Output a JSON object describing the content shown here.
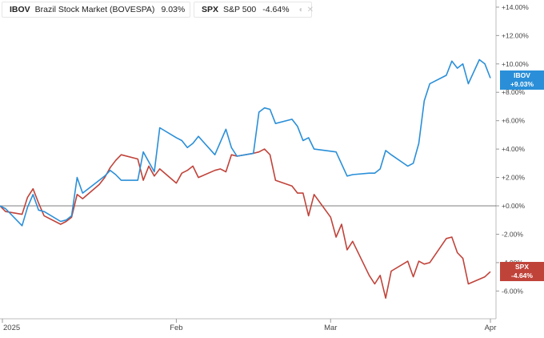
{
  "legend": [
    {
      "symbol": "IBOV",
      "name": "Brazil Stock Market (BOVESPA)",
      "change": "9.03%",
      "color": "#2a8fd8"
    },
    {
      "symbol": "SPX",
      "name": "S&P 500",
      "change": "-4.64%",
      "color": "#c0433a"
    }
  ],
  "badges": {
    "ibov": {
      "symbol": "IBOV",
      "value": "+9.03%"
    },
    "spx": {
      "symbol": "SPX",
      "value": "-4.64%"
    }
  },
  "chart_data": {
    "type": "line",
    "ylim": [
      -7.2,
      14.2
    ],
    "y_ticks": [
      "+14.00%",
      "+12.00%",
      "+10.00%",
      "+8.00%",
      "+6.00%",
      "+4.00%",
      "+2.00%",
      "+0.00%",
      "-2.00%",
      "-4.00%",
      "-6.00%"
    ],
    "y_tick_values": [
      14,
      12,
      10,
      8,
      6,
      4,
      2,
      0,
      -2,
      -4,
      -6
    ],
    "x_ticks": [
      {
        "label": "2025",
        "date": "2025-01-02"
      },
      {
        "label": "Feb",
        "date": "2025-02-03"
      },
      {
        "label": "Mar",
        "date": "2025-03-03"
      },
      {
        "label": "Apr",
        "date": "2025-04-01"
      }
    ],
    "x_range": [
      "2025-01-02",
      "2025-04-01"
    ],
    "zero_line": 0,
    "series": [
      {
        "name": "IBOV",
        "color": "#2a8fd8",
        "points": [
          [
            "2025-01-02",
            0.0
          ],
          [
            "2025-01-03",
            -0.2
          ],
          [
            "2025-01-06",
            -1.4
          ],
          [
            "2025-01-07",
            -0.1
          ],
          [
            "2025-01-08",
            0.8
          ],
          [
            "2025-01-09",
            -0.3
          ],
          [
            "2025-01-10",
            -0.4
          ],
          [
            "2025-01-13",
            -1.1
          ],
          [
            "2025-01-14",
            -1.0
          ],
          [
            "2025-01-15",
            -0.7
          ],
          [
            "2025-01-16",
            2.0
          ],
          [
            "2025-01-17",
            0.9
          ],
          [
            "2025-01-20",
            1.8
          ],
          [
            "2025-01-21",
            2.1
          ],
          [
            "2025-01-22",
            2.5
          ],
          [
            "2025-01-23",
            2.2
          ],
          [
            "2025-01-24",
            1.8
          ],
          [
            "2025-01-27",
            1.8
          ],
          [
            "2025-01-28",
            3.8
          ],
          [
            "2025-01-29",
            3.1
          ],
          [
            "2025-01-30",
            2.4
          ],
          [
            "2025-01-31",
            5.5
          ],
          [
            "2025-02-03",
            4.8
          ],
          [
            "2025-02-04",
            4.6
          ],
          [
            "2025-02-05",
            4.1
          ],
          [
            "2025-02-06",
            4.4
          ],
          [
            "2025-02-07",
            4.9
          ],
          [
            "2025-02-10",
            3.6
          ],
          [
            "2025-02-11",
            4.5
          ],
          [
            "2025-02-12",
            5.4
          ],
          [
            "2025-02-13",
            4.1
          ],
          [
            "2025-02-14",
            3.5
          ],
          [
            "2025-02-17",
            3.7
          ],
          [
            "2025-02-18",
            6.6
          ],
          [
            "2025-02-19",
            6.9
          ],
          [
            "2025-02-20",
            6.8
          ],
          [
            "2025-02-21",
            5.8
          ],
          [
            "2025-02-24",
            6.1
          ],
          [
            "2025-02-25",
            5.6
          ],
          [
            "2025-02-26",
            4.6
          ],
          [
            "2025-02-27",
            4.8
          ],
          [
            "2025-02-28",
            4.0
          ],
          [
            "2025-03-04",
            3.8
          ],
          [
            "2025-03-06",
            2.1
          ],
          [
            "2025-03-07",
            2.2
          ],
          [
            "2025-03-10",
            2.3
          ],
          [
            "2025-03-11",
            2.3
          ],
          [
            "2025-03-12",
            2.6
          ],
          [
            "2025-03-13",
            3.9
          ],
          [
            "2025-03-14",
            3.6
          ],
          [
            "2025-03-17",
            2.8
          ],
          [
            "2025-03-18",
            3.0
          ],
          [
            "2025-03-19",
            4.4
          ],
          [
            "2025-03-20",
            7.4
          ],
          [
            "2025-03-21",
            8.6
          ],
          [
            "2025-03-24",
            9.2
          ],
          [
            "2025-03-25",
            10.2
          ],
          [
            "2025-03-26",
            9.7
          ],
          [
            "2025-03-27",
            10.0
          ],
          [
            "2025-03-28",
            8.6
          ],
          [
            "2025-03-30",
            10.3
          ],
          [
            "2025-03-31",
            10.0
          ],
          [
            "2025-04-01",
            9.0
          ]
        ]
      },
      {
        "name": "SPX",
        "color": "#c0433a",
        "points": [
          [
            "2025-01-02",
            0.0
          ],
          [
            "2025-01-03",
            -0.4
          ],
          [
            "2025-01-06",
            -0.6
          ],
          [
            "2025-01-07",
            0.6
          ],
          [
            "2025-01-08",
            1.2
          ],
          [
            "2025-01-09",
            0.2
          ],
          [
            "2025-01-10",
            -0.7
          ],
          [
            "2025-01-13",
            -1.3
          ],
          [
            "2025-01-14",
            -1.1
          ],
          [
            "2025-01-15",
            -0.8
          ],
          [
            "2025-01-16",
            0.8
          ],
          [
            "2025-01-17",
            0.5
          ],
          [
            "2025-01-20",
            1.5
          ],
          [
            "2025-01-21",
            2.0
          ],
          [
            "2025-01-22",
            2.7
          ],
          [
            "2025-01-23",
            3.2
          ],
          [
            "2025-01-24",
            3.6
          ],
          [
            "2025-01-27",
            3.3
          ],
          [
            "2025-01-28",
            1.8
          ],
          [
            "2025-01-29",
            2.8
          ],
          [
            "2025-01-30",
            2.1
          ],
          [
            "2025-01-31",
            2.6
          ],
          [
            "2025-02-03",
            1.6
          ],
          [
            "2025-02-04",
            2.3
          ],
          [
            "2025-02-05",
            2.5
          ],
          [
            "2025-02-06",
            2.8
          ],
          [
            "2025-02-07",
            2.0
          ],
          [
            "2025-02-10",
            2.5
          ],
          [
            "2025-02-11",
            2.6
          ],
          [
            "2025-02-12",
            2.4
          ],
          [
            "2025-02-13",
            3.6
          ],
          [
            "2025-02-14",
            3.5
          ],
          [
            "2025-02-17",
            3.7
          ],
          [
            "2025-02-18",
            3.8
          ],
          [
            "2025-02-19",
            4.0
          ],
          [
            "2025-02-20",
            3.6
          ],
          [
            "2025-02-21",
            1.8
          ],
          [
            "2025-02-24",
            1.4
          ],
          [
            "2025-02-25",
            0.9
          ],
          [
            "2025-02-26",
            0.9
          ],
          [
            "2025-02-27",
            -0.7
          ],
          [
            "2025-02-28",
            0.8
          ],
          [
            "2025-03-03",
            -0.8
          ],
          [
            "2025-03-04",
            -2.2
          ],
          [
            "2025-03-05",
            -1.3
          ],
          [
            "2025-03-06",
            -3.1
          ],
          [
            "2025-03-07",
            -2.5
          ],
          [
            "2025-03-10",
            -4.9
          ],
          [
            "2025-03-11",
            -5.5
          ],
          [
            "2025-03-12",
            -4.9
          ],
          [
            "2025-03-13",
            -6.5
          ],
          [
            "2025-03-14",
            -4.6
          ],
          [
            "2025-03-17",
            -3.9
          ],
          [
            "2025-03-18",
            -5.0
          ],
          [
            "2025-03-19",
            -3.9
          ],
          [
            "2025-03-20",
            -4.1
          ],
          [
            "2025-03-21",
            -4.0
          ],
          [
            "2025-03-24",
            -2.3
          ],
          [
            "2025-03-25",
            -2.2
          ],
          [
            "2025-03-26",
            -3.3
          ],
          [
            "2025-03-27",
            -3.7
          ],
          [
            "2025-03-28",
            -5.5
          ],
          [
            "2025-03-31",
            -5.0
          ],
          [
            "2025-04-01",
            -4.64
          ]
        ]
      }
    ]
  }
}
